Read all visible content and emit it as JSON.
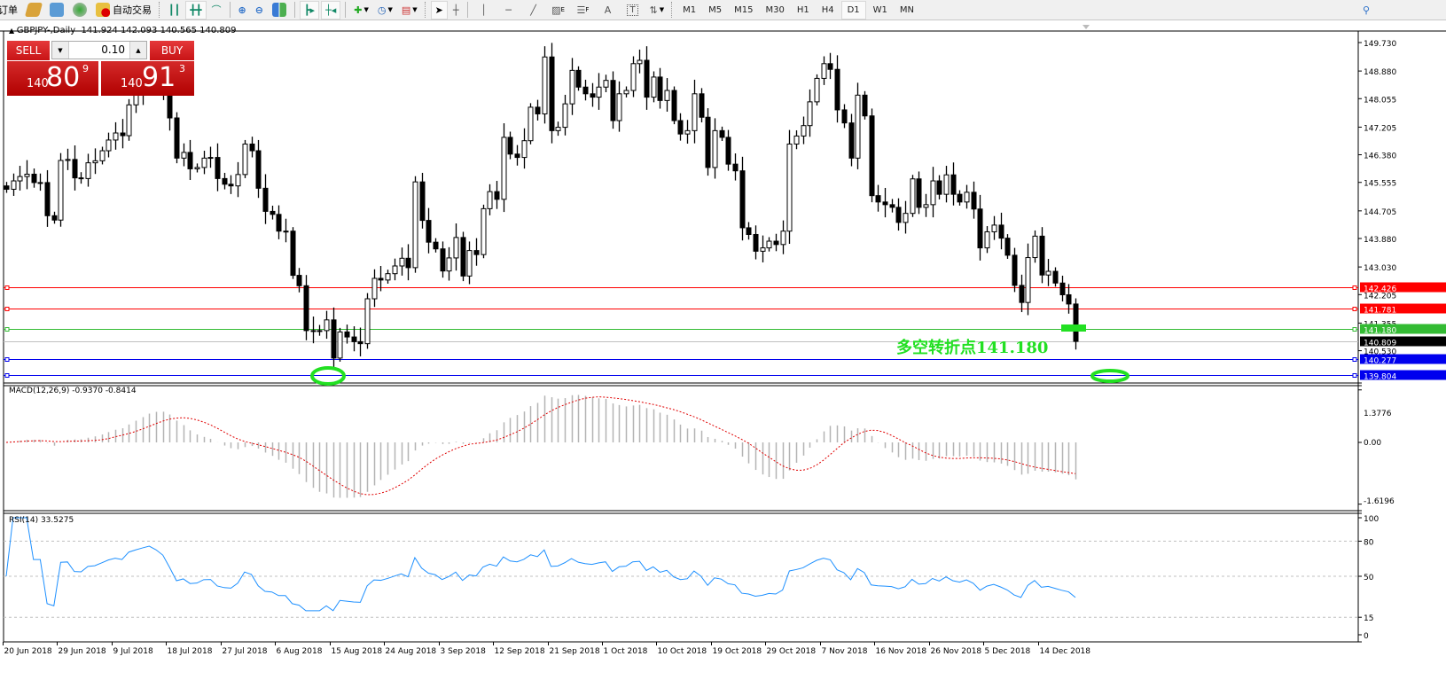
{
  "toolbar": {
    "orders_label": "订单",
    "autotrade_label": "自动交易",
    "timeframes": [
      "M1",
      "M5",
      "M15",
      "M30",
      "H1",
      "H4",
      "D1",
      "W1",
      "MN"
    ],
    "active_timeframe": "D1",
    "draw_tools": {
      "channel_suffix": "E",
      "fibo_suffix": "F",
      "text_tool": "A",
      "label_tool": "T"
    }
  },
  "header": {
    "symbol": "GBPJPY-,Daily",
    "open": "141.924",
    "high": "142.093",
    "low": "140.565",
    "close": "140.809"
  },
  "trade_panel": {
    "sell_label": "SELL",
    "buy_label": "BUY",
    "lot": "0.10",
    "sell": {
      "prefix": "140",
      "big": "80",
      "pip": "9"
    },
    "buy": {
      "prefix": "140",
      "big": "91",
      "pip": "3"
    }
  },
  "annotation": {
    "text": "多空转折点141.180",
    "color": "#22e022"
  },
  "indicators": {
    "macd_label": "MACD(12,26,9) -0.9370 -0.8414",
    "rsi_label": "RSI(14) 33.5275"
  },
  "chart_data": {
    "type": "candlestick",
    "symbol": "GBPJPY",
    "timeframe": "Daily",
    "price_range": [
      139.804,
      149.73
    ],
    "price_ticks": [
      "149.730",
      "148.880",
      "148.055",
      "147.205",
      "146.380",
      "145.555",
      "144.705",
      "143.880",
      "143.030",
      "142.205",
      "141.355",
      "140.530"
    ],
    "date_labels": [
      "20 Jun 2018",
      "29 Jun 2018",
      "9 Jul 2018",
      "18 Jul 2018",
      "27 Jul 2018",
      "6 Aug 2018",
      "15 Aug 2018",
      "24 Aug 2018",
      "3 Sep 2018",
      "12 Sep 2018",
      "21 Sep 2018",
      "1 Oct 2018",
      "10 Oct 2018",
      "19 Oct 2018",
      "29 Oct 2018",
      "7 Nov 2018",
      "16 Nov 2018",
      "26 Nov 2018",
      "5 Dec 2018",
      "14 Dec 2018"
    ],
    "bars_per_date_label": 8,
    "close": [
      145.35,
      145.6,
      145.73,
      145.8,
      145.55,
      145.55,
      144.56,
      144.43,
      146.21,
      146.24,
      145.69,
      145.67,
      146.14,
      146.2,
      146.5,
      146.82,
      147.03,
      146.95,
      147.87,
      148.2,
      148.5,
      148.8,
      148.6,
      148.3,
      147.48,
      146.28,
      146.45,
      145.96,
      146.0,
      146.28,
      146.3,
      145.67,
      145.5,
      145.45,
      145.79,
      146.7,
      146.5,
      145.38,
      144.69,
      144.6,
      144.1,
      144.1,
      142.78,
      142.47,
      141.13,
      141.13,
      141.13,
      141.45,
      140.31,
      141.09,
      140.94,
      140.8,
      140.74,
      142.08,
      142.69,
      142.64,
      142.83,
      143.06,
      143.29,
      143.01,
      145.57,
      144.42,
      143.77,
      143.57,
      142.91,
      143.3,
      143.91,
      142.76,
      143.52,
      143.4,
      144.77,
      145.28,
      145.05,
      146.9,
      146.4,
      146.3,
      146.8,
      147.8,
      147.6,
      149.3,
      147.1,
      147.2,
      147.9,
      148.9,
      148.4,
      148.2,
      148.1,
      148.4,
      148.6,
      147.4,
      148.2,
      148.3,
      149.1,
      149.2,
      148.1,
      148.7,
      148.0,
      148.3,
      147.4,
      147.0,
      147.1,
      148.2,
      147.5,
      146.0,
      147.1,
      146.9,
      146.1,
      145.9,
      144.2,
      144.0,
      143.5,
      143.6,
      143.8,
      143.7,
      144.1,
      146.7,
      146.94,
      147.25,
      147.96,
      148.66,
      149.1,
      148.93,
      147.72,
      147.33,
      146.28,
      148.16,
      147.54,
      145.16,
      144.97,
      144.89,
      144.81,
      144.36,
      144.63,
      145.66,
      144.81,
      144.89,
      145.6,
      145.2,
      145.78,
      145.2,
      144.97,
      145.26,
      144.76,
      143.6,
      144.08,
      144.28,
      143.89,
      143.38,
      142.48,
      141.97,
      143.31,
      143.95,
      142.79,
      142.9,
      142.55,
      142.2,
      141.924,
      140.809
    ],
    "last_bar": {
      "open": 141.924,
      "high": 142.093,
      "low": 140.565,
      "close": 140.809
    },
    "levels": [
      {
        "price": 142.426,
        "label": "142.426",
        "color": "#ff0000"
      },
      {
        "price": 141.781,
        "label": "141.781",
        "color": "#ff0000"
      },
      {
        "price": 141.18,
        "label": "141.180",
        "color": "#33bb33"
      },
      {
        "price": 140.809,
        "label": "140.809",
        "color": "#000000",
        "line_color": "#c0c0c0"
      },
      {
        "price": 140.277,
        "label": "140.277",
        "color": "#0000ee"
      },
      {
        "price": 139.804,
        "label": "139.804",
        "color": "#0000ee"
      }
    ],
    "macd": {
      "params": [
        12,
        26,
        9
      ],
      "range": [
        -1.6196,
        1.3776
      ],
      "ticks": [
        "1.3776",
        "0.00",
        "-1.6196"
      ],
      "histogram_color": "#b4b4b4",
      "signal_color": "#e00000"
    },
    "rsi": {
      "period": 14,
      "range": [
        0,
        100
      ],
      "levels": [
        80,
        50,
        15
      ],
      "ticks": [
        "100",
        "80",
        "50",
        "15",
        "0"
      ],
      "color": "#1e90ff"
    },
    "grid": false
  },
  "colors": {
    "up_body": "#ffffff",
    "down_body": "#000000",
    "ellipse": "#22e022",
    "panel_red": "#c81416"
  }
}
